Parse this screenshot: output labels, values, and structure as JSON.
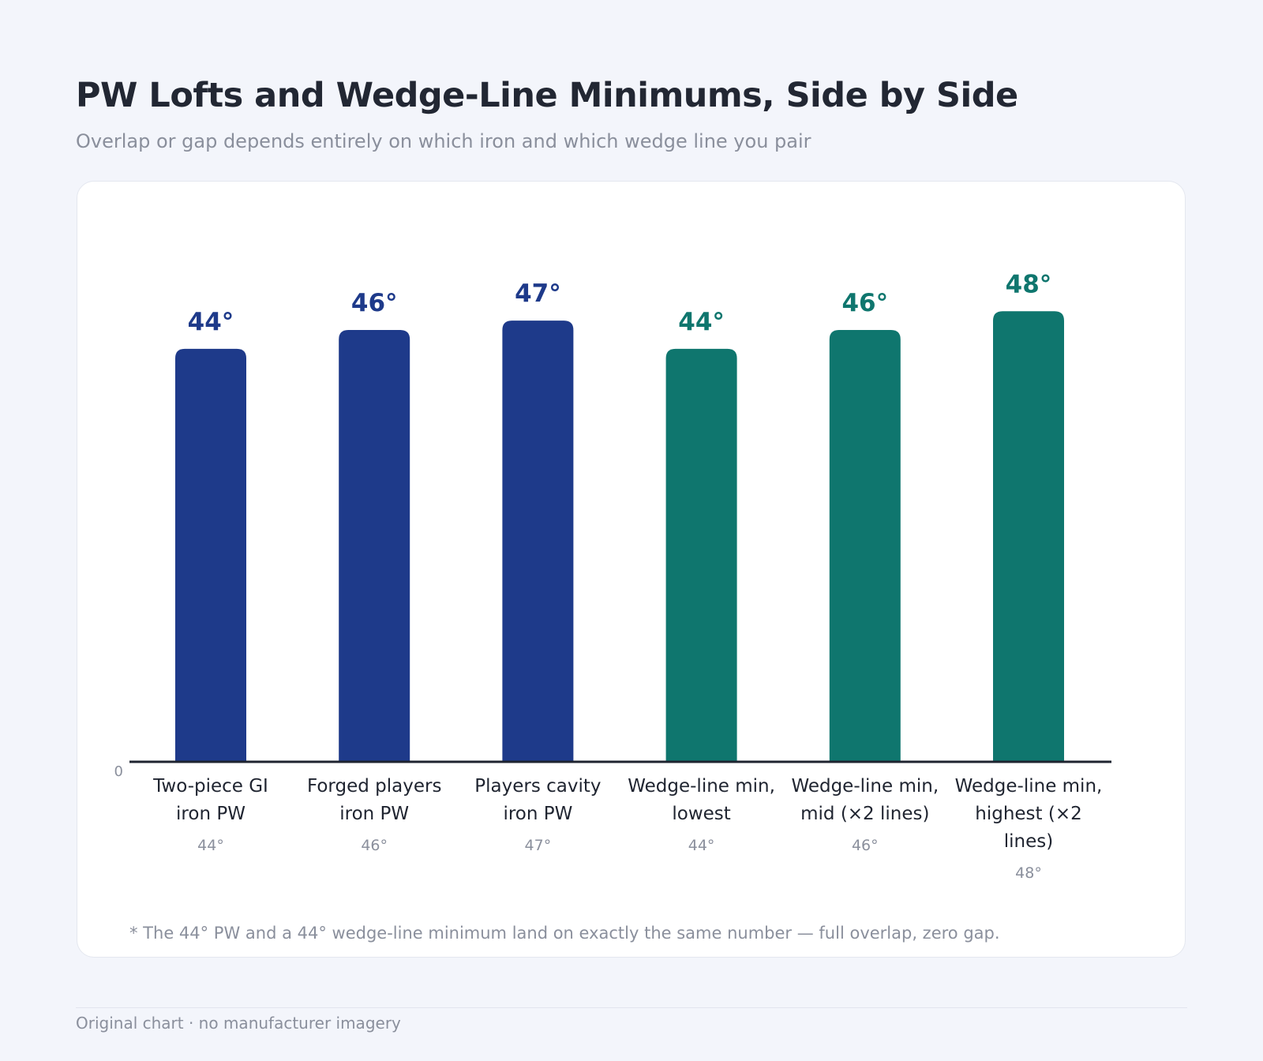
{
  "header": {
    "title": "PW Lofts and Wedge-Line Minimums, Side by Side",
    "subtitle": "Overlap or gap depends entirely on which iron and which wedge line you pair"
  },
  "footnote": "* The 44° PW and a 44° wedge-line minimum land on exactly the same number — full overlap, zero gap.",
  "footer": {
    "credit": "Original chart · no manufacturer imagery"
  },
  "colors": {
    "iron": "#1e3a8a",
    "wedge": "#0f766e",
    "axis": "#1f2430",
    "category_text": "#1f2430",
    "sub_text": "#8a8f9c"
  },
  "chart_data": {
    "type": "bar",
    "categories": [
      [
        "Two-piece GI",
        "iron PW"
      ],
      [
        "Forged players",
        "iron PW"
      ],
      [
        "Players cavity",
        "iron PW"
      ],
      [
        "Wedge-line min,",
        "lowest"
      ],
      [
        "Wedge-line min,",
        "mid (×2 lines)"
      ],
      [
        "Wedge-line min,",
        "highest (×2",
        "lines)"
      ]
    ],
    "values": [
      44,
      46,
      47,
      44,
      46,
      48
    ],
    "value_labels": [
      "44°",
      "46°",
      "47°",
      "44°",
      "46°",
      "48°"
    ],
    "sub_labels": [
      "44°",
      "46°",
      "47°",
      "44°",
      "46°",
      "48°"
    ],
    "groups": [
      "iron",
      "iron",
      "iron",
      "wedge",
      "wedge",
      "wedge"
    ],
    "y_tick_labels": [
      "0"
    ],
    "ylim": [
      0,
      52
    ],
    "grid": false,
    "legend": "none",
    "xlabel": "",
    "ylabel": ""
  }
}
